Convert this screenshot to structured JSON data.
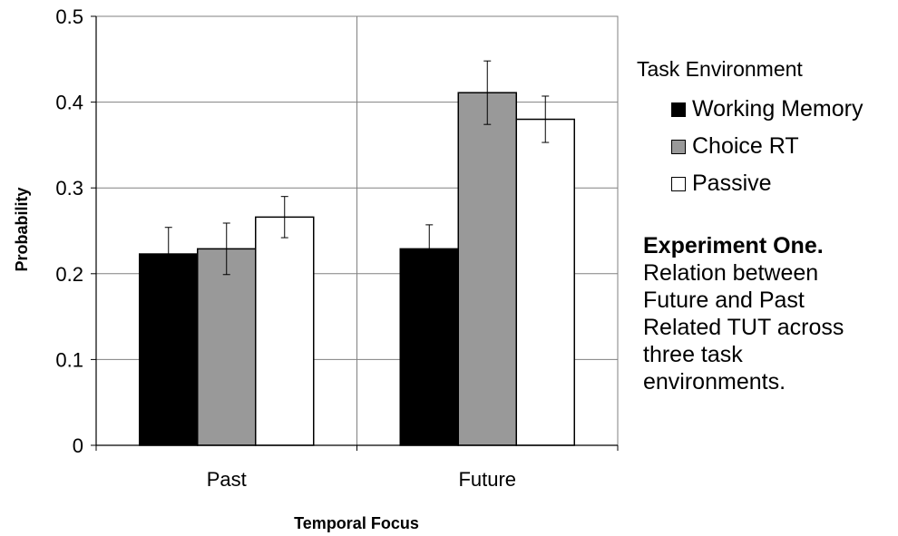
{
  "chart_data": {
    "type": "bar",
    "categories": [
      "Past",
      "Future"
    ],
    "series": [
      {
        "name": "Working Memory",
        "values": [
          0.223,
          0.229
        ],
        "errors": [
          0.031,
          0.028
        ],
        "color": "#000000"
      },
      {
        "name": "Choice RT",
        "values": [
          0.229,
          0.411
        ],
        "errors": [
          0.03,
          0.037
        ],
        "color": "#999999"
      },
      {
        "name": "Passive",
        "values": [
          0.266,
          0.38
        ],
        "errors": [
          0.024,
          0.027
        ],
        "color": "#ffffff"
      }
    ],
    "xlabel": "Temporal Focus",
    "ylabel": "Probability",
    "ylim": [
      0,
      0.5
    ],
    "yticks": [
      "0",
      "0.1",
      "0.2",
      "0.3",
      "0.4",
      "0.5"
    ],
    "grid": true,
    "legend_title": "Task Environment",
    "legend_position": "right"
  },
  "caption": {
    "title": "Experiment One.",
    "lines": [
      "Relation between",
      "Future and Past",
      "Related TUT across",
      "three task",
      "environments."
    ]
  }
}
